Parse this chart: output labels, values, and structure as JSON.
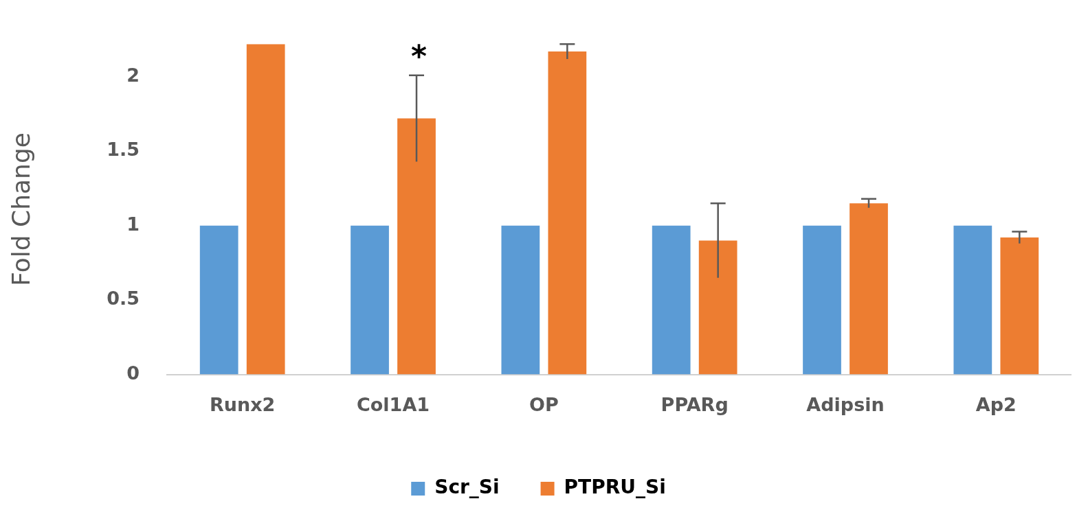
{
  "chart_data": {
    "type": "bar",
    "ylabel": "Fold Change",
    "categories": [
      "Runx2",
      "Col1A1",
      "OP",
      "PPARg",
      "Adipsin",
      "Ap2"
    ],
    "series": [
      {
        "name": "Scr_Si",
        "color": "#5b9bd5",
        "values": [
          1,
          1,
          1,
          1,
          1,
          1
        ]
      },
      {
        "name": "PTPRU_Si",
        "color": "#ed7d31",
        "values": [
          2.22,
          1.72,
          2.17,
          0.9,
          1.15,
          0.92
        ],
        "errors": [
          null,
          0.29,
          0.05,
          0.25,
          0.03,
          0.04
        ]
      }
    ],
    "ylim": [
      0,
      2.22
    ],
    "yticks": [
      0,
      0.5,
      1,
      1.5,
      2
    ],
    "grid": false,
    "legend": "bottom",
    "annotations": [
      "*"
    ]
  }
}
